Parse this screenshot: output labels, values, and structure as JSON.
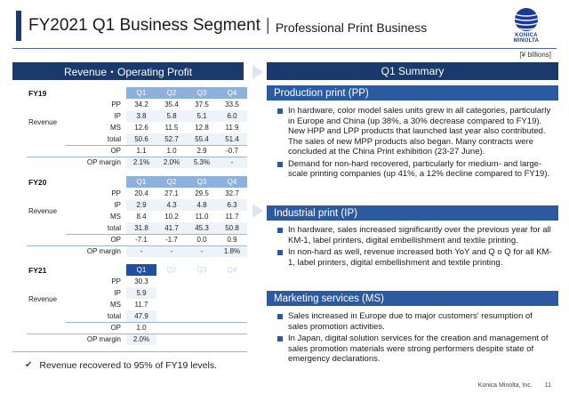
{
  "header": {
    "title": "FY2021 Q1 Business Segment",
    "separator": "|",
    "subtitle": "Professional Print Business",
    "logo_text": "KONICA MINOLTA",
    "unit": "[¥ billions]"
  },
  "left_panel": {
    "title": "Revenue・Operating Profit",
    "quarters": [
      "Q1",
      "Q2",
      "Q3",
      "Q4"
    ],
    "fy19": {
      "year": "FY19",
      "group": "Revenue",
      "rows": [
        {
          "label": "PP",
          "values": [
            "34.2",
            "35.4",
            "37.5",
            "33.5"
          ]
        },
        {
          "label": "IP",
          "values": [
            "3.8",
            "5.8",
            "5.1",
            "6.0"
          ]
        },
        {
          "label": "MS",
          "values": [
            "12.6",
            "11.5",
            "12.8",
            "11.9"
          ]
        },
        {
          "label": "total",
          "values": [
            "50.6",
            "52.7",
            "55.4",
            "51.4"
          ]
        },
        {
          "label": "OP",
          "values": [
            "1.1",
            "1.0",
            "2.9",
            "-0.7"
          ]
        },
        {
          "label": "OP margin",
          "values": [
            "2.1%",
            "2.0%",
            "5.3%",
            "-"
          ]
        }
      ]
    },
    "fy20": {
      "year": "FY20",
      "group": "Revenue",
      "rows": [
        {
          "label": "PP",
          "values": [
            "20.4",
            "27.1",
            "29.5",
            "32.7"
          ]
        },
        {
          "label": "IP",
          "values": [
            "2.9",
            "4.3",
            "4.8",
            "6.3"
          ]
        },
        {
          "label": "MS",
          "values": [
            "8.4",
            "10.2",
            "11.0",
            "11.7"
          ]
        },
        {
          "label": "total",
          "values": [
            "31.8",
            "41.7",
            "45.3",
            "50.8"
          ]
        },
        {
          "label": "OP",
          "values": [
            "-7.1",
            "-1.7",
            "0.0",
            "0.9"
          ]
        },
        {
          "label": "OP margin",
          "values": [
            "-",
            "-",
            "-",
            "1.8%"
          ]
        }
      ]
    },
    "fy21": {
      "year": "FY21",
      "group": "Revenue",
      "rows": [
        {
          "label": "PP",
          "values": [
            "30.3"
          ]
        },
        {
          "label": "IP",
          "values": [
            "5.9"
          ]
        },
        {
          "label": "MS",
          "values": [
            "11.7"
          ]
        },
        {
          "label": "total",
          "values": [
            "47.9"
          ]
        },
        {
          "label": "OP",
          "values": [
            "1.0"
          ]
        },
        {
          "label": "OP margin",
          "values": [
            "2.0%"
          ]
        }
      ]
    },
    "note": "Revenue recovered to 95% of FY19 levels."
  },
  "right_panel": {
    "title": "Q1 Summary",
    "sections": [
      {
        "title": "Production print (PP)",
        "bullets": [
          "In hardware, color model sales units grew in all categories, particularly in Europe and China (up 38%, a 30% decrease compared to FY19). New HPP and LPP products that launched last year also contributed. The sales of new MPP products also began. Many contracts were concluded at the China Print exhibition (23-27 June).",
          "Demand for non-hard recovered, particularly for medium- and large-scale printing companies (up 41%, a 12% decline compared to FY19)."
        ]
      },
      {
        "title": "Industrial print (IP)",
        "bullets": [
          "In hardware, sales increased significantly over the previous year for all KM-1, label printers, digital embellishment and textile printing.",
          "In non-hard as well, revenue increased both YoY and Q o Q for all KM-1, label printers, digital embellishment and textile printing."
        ]
      },
      {
        "title": "Marketing services (MS)",
        "bullets": [
          "Sales increased in Europe due to major customers' resumption of sales promotion activities.",
          "In Japan, digital solution services for the creation and management of sales promotion materials were strong performers despite state of emergency declarations."
        ]
      }
    ]
  },
  "footer": {
    "company": "Konica Minolta, Inc.",
    "page": "11"
  },
  "colors": {
    "navy": "#1a3a6b",
    "section_blue": "#2c5aa0",
    "quarter_light": "#8db0dd",
    "quarter_active": "#1e4fa0"
  }
}
